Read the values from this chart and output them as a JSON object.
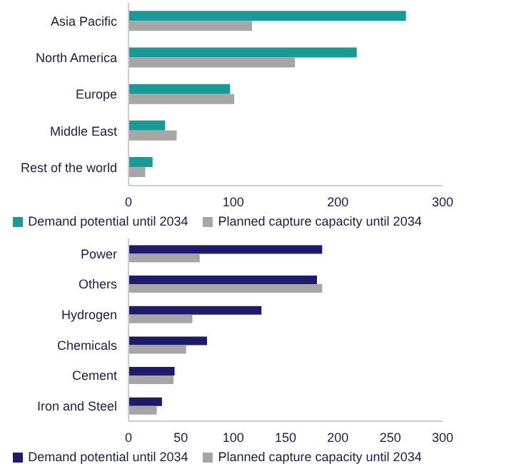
{
  "chart_data": [
    {
      "type": "bar",
      "orientation": "horizontal",
      "categories": [
        "Asia Pacific",
        "North America",
        "Europe",
        "Middle East",
        "Rest of the world"
      ],
      "series": [
        {
          "name": "Demand potential until 2034",
          "color": "#1a9a96",
          "values": [
            265,
            218,
            97,
            35,
            23
          ]
        },
        {
          "name": "Planned capture capacity until 2034",
          "color": "#a6a6a6",
          "values": [
            118,
            159,
            101,
            46,
            16
          ]
        }
      ],
      "xlim": [
        0,
        300
      ],
      "xticks": [
        0,
        100,
        200,
        300
      ],
      "grid": false,
      "legend": "bottom"
    },
    {
      "type": "bar",
      "orientation": "horizontal",
      "categories": [
        "Power",
        "Others",
        "Hydrogen",
        "Chemicals",
        "Cement",
        "Iron and Steel"
      ],
      "series": [
        {
          "name": "Demand potential until 2034",
          "color": "#1c1c6b",
          "values": [
            185,
            180,
            127,
            75,
            44,
            32
          ]
        },
        {
          "name": "Planned capture capacity until 2034",
          "color": "#a6a6a6",
          "values": [
            68,
            185,
            61,
            55,
            43,
            27
          ]
        }
      ],
      "xlim": [
        0,
        300
      ],
      "xticks": [
        0,
        50,
        100,
        150,
        200,
        250,
        300
      ],
      "grid": false,
      "legend": "bottom"
    }
  ]
}
